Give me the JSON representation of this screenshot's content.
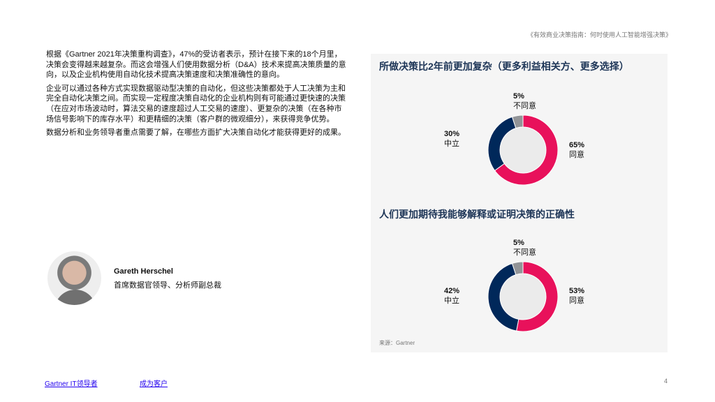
{
  "header": {
    "doc_title": "《有效商业决策指南：何时使用人工智能增强决策》"
  },
  "body": {
    "paragraphs": [
      "根据《Gartner 2021年决策重构调查》，47%的受访者表示，预计在接下来的18个月里，决策会变得越来越复杂。而这会增强人们使用数据分析（D&A）技术来提高决策质量的意向，以及企业机构使用自动化技术提高决策速度和决策准确性的意向。",
      "企业可以通过各种方式实现数据驱动型决策的自动化，但这些决策都处于人工决策为主和完全自动化决策之间。而实现一定程度决策自动化的企业机构则有可能通过更快速的决策（在应对市场波动时，算法交易的速度超过人工交易的速度）、更复杂的决策（在各种市场信号影响下的库存水平）和更精细的决策（客户群的微观细分），来获得竞争优势。",
      "数据分析和业务领导者重点需要了解，在哪些方面扩大决策自动化才能获得更好的成果。"
    ]
  },
  "author": {
    "name": "Gareth Herschel",
    "role": "首席数据官领导、分析师副总裁"
  },
  "chart_data": [
    {
      "type": "pie",
      "donut": true,
      "title": "所做决策比2年前更加复杂（更多利益相关方、更多选择）",
      "categories": [
        "同意",
        "中立",
        "不同意"
      ],
      "values": [
        65,
        30,
        5
      ],
      "labels": [
        "65%",
        "30%",
        "5%"
      ],
      "colors": [
        "#e8115b",
        "#00285a",
        "#929497"
      ]
    },
    {
      "type": "pie",
      "donut": true,
      "title": "人们更加期待我能够解释或证明决策的正确性",
      "categories": [
        "同意",
        "中立",
        "不同意"
      ],
      "values": [
        53,
        42,
        5
      ],
      "labels": [
        "53%",
        "42%",
        "5%"
      ],
      "colors": [
        "#e8115b",
        "#00285a",
        "#929497"
      ]
    }
  ],
  "source": "来源：Gartner",
  "footer": {
    "link1": "Gartner IT领导者",
    "link2": "成为客户",
    "page": "4"
  }
}
